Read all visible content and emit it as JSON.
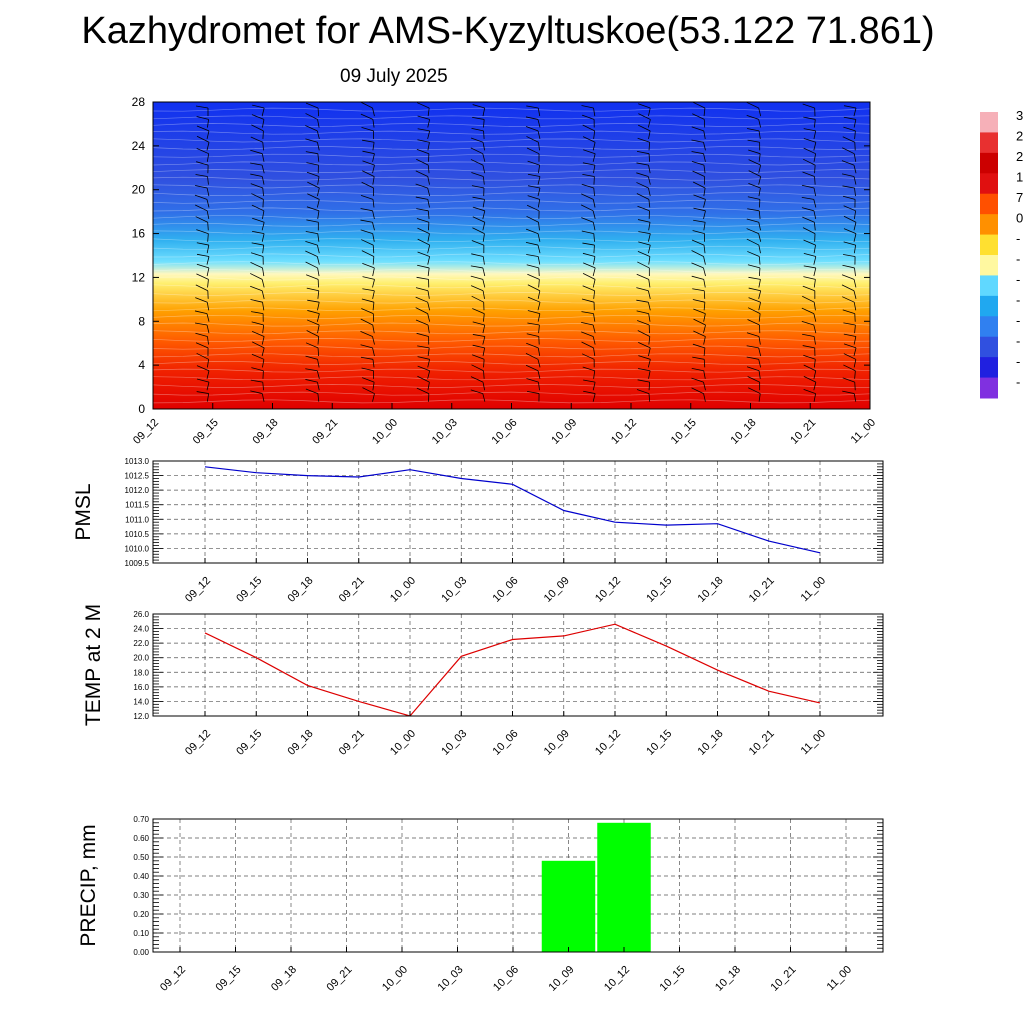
{
  "title": "Kazhydromet for AMS-Kyzyltuskoe(53.122 71.861)",
  "subtitle": "09 July 2025",
  "colors": {
    "pmsl_line": "#0000cc",
    "temp_line": "#dd0000",
    "precip_bar": "#00ff00",
    "grid": "#555555"
  },
  "chart_data": [
    {
      "type": "heatmap",
      "title": "",
      "x_ticks": [
        "09_12",
        "09_15",
        "09_18",
        "09_21",
        "10_00",
        "10_03",
        "10_06",
        "10_09",
        "10_12",
        "10_15",
        "10_18",
        "10_21",
        "11_00"
      ],
      "y_ticks": [
        "0",
        "4",
        "8",
        "12",
        "16",
        "20",
        "24",
        "28"
      ],
      "ylim": [
        0,
        28
      ],
      "colorbar_labels": [
        "3",
        "2",
        "2",
        "1",
        "7",
        "0",
        "-",
        "-",
        "-",
        "-",
        "-",
        "-",
        "-",
        "-"
      ],
      "colorbar_colors": [
        "#f6b0b8",
        "#e83030",
        "#cc0000",
        "#e01010",
        "#ff5000",
        "#ff9000",
        "#ffe030",
        "#fff8a0",
        "#60d8ff",
        "#20a8f0",
        "#3080f0",
        "#3050e0",
        "#2020e0",
        "#8030e0"
      ]
    },
    {
      "type": "line",
      "ylabel": "PMSL",
      "x": [
        "09_12",
        "09_15",
        "09_18",
        "09_21",
        "10_00",
        "10_03",
        "10_06",
        "10_09",
        "10_12",
        "10_15",
        "10_18",
        "10_21",
        "11_00"
      ],
      "values": [
        1012.8,
        1012.6,
        1012.5,
        1012.45,
        1012.7,
        1012.4,
        1012.2,
        1011.3,
        1010.9,
        1010.8,
        1010.85,
        1010.25,
        1009.85
      ],
      "y_ticks": [
        "1009.5",
        "1010.0",
        "1010.5",
        "1011.0",
        "1011.5",
        "1012.0",
        "1012.5",
        "1013.0"
      ],
      "ylim": [
        1009.5,
        1013.0
      ],
      "grid": true
    },
    {
      "type": "line",
      "ylabel": "TEMP at 2 M",
      "x": [
        "09_12",
        "09_15",
        "09_18",
        "09_21",
        "10_00",
        "10_03",
        "10_06",
        "10_09",
        "10_12",
        "10_15",
        "10_18",
        "10_21",
        "11_00"
      ],
      "values": [
        23.4,
        20.0,
        16.2,
        14.0,
        12.0,
        20.2,
        22.5,
        23.0,
        24.6,
        21.6,
        18.3,
        15.4,
        13.8
      ],
      "y_ticks": [
        "12.0",
        "14.0",
        "16.0",
        "18.0",
        "20.0",
        "22.0",
        "24.0",
        "26.0"
      ],
      "ylim": [
        12.0,
        26.0
      ],
      "grid": true
    },
    {
      "type": "bar",
      "ylabel": "PRECIP, mm",
      "categories": [
        "09_12",
        "09_15",
        "09_18",
        "09_21",
        "10_00",
        "10_03",
        "10_06",
        "10_09",
        "10_12",
        "10_15",
        "10_18",
        "10_21",
        "11_00"
      ],
      "values": [
        0,
        0,
        0,
        0,
        0,
        0,
        0,
        0.48,
        0.68,
        0,
        0,
        0,
        0
      ],
      "y_ticks": [
        "0.00",
        "0.10",
        "0.20",
        "0.30",
        "0.40",
        "0.50",
        "0.60",
        "0.70"
      ],
      "ylim": [
        0,
        0.7
      ],
      "grid": true
    }
  ]
}
